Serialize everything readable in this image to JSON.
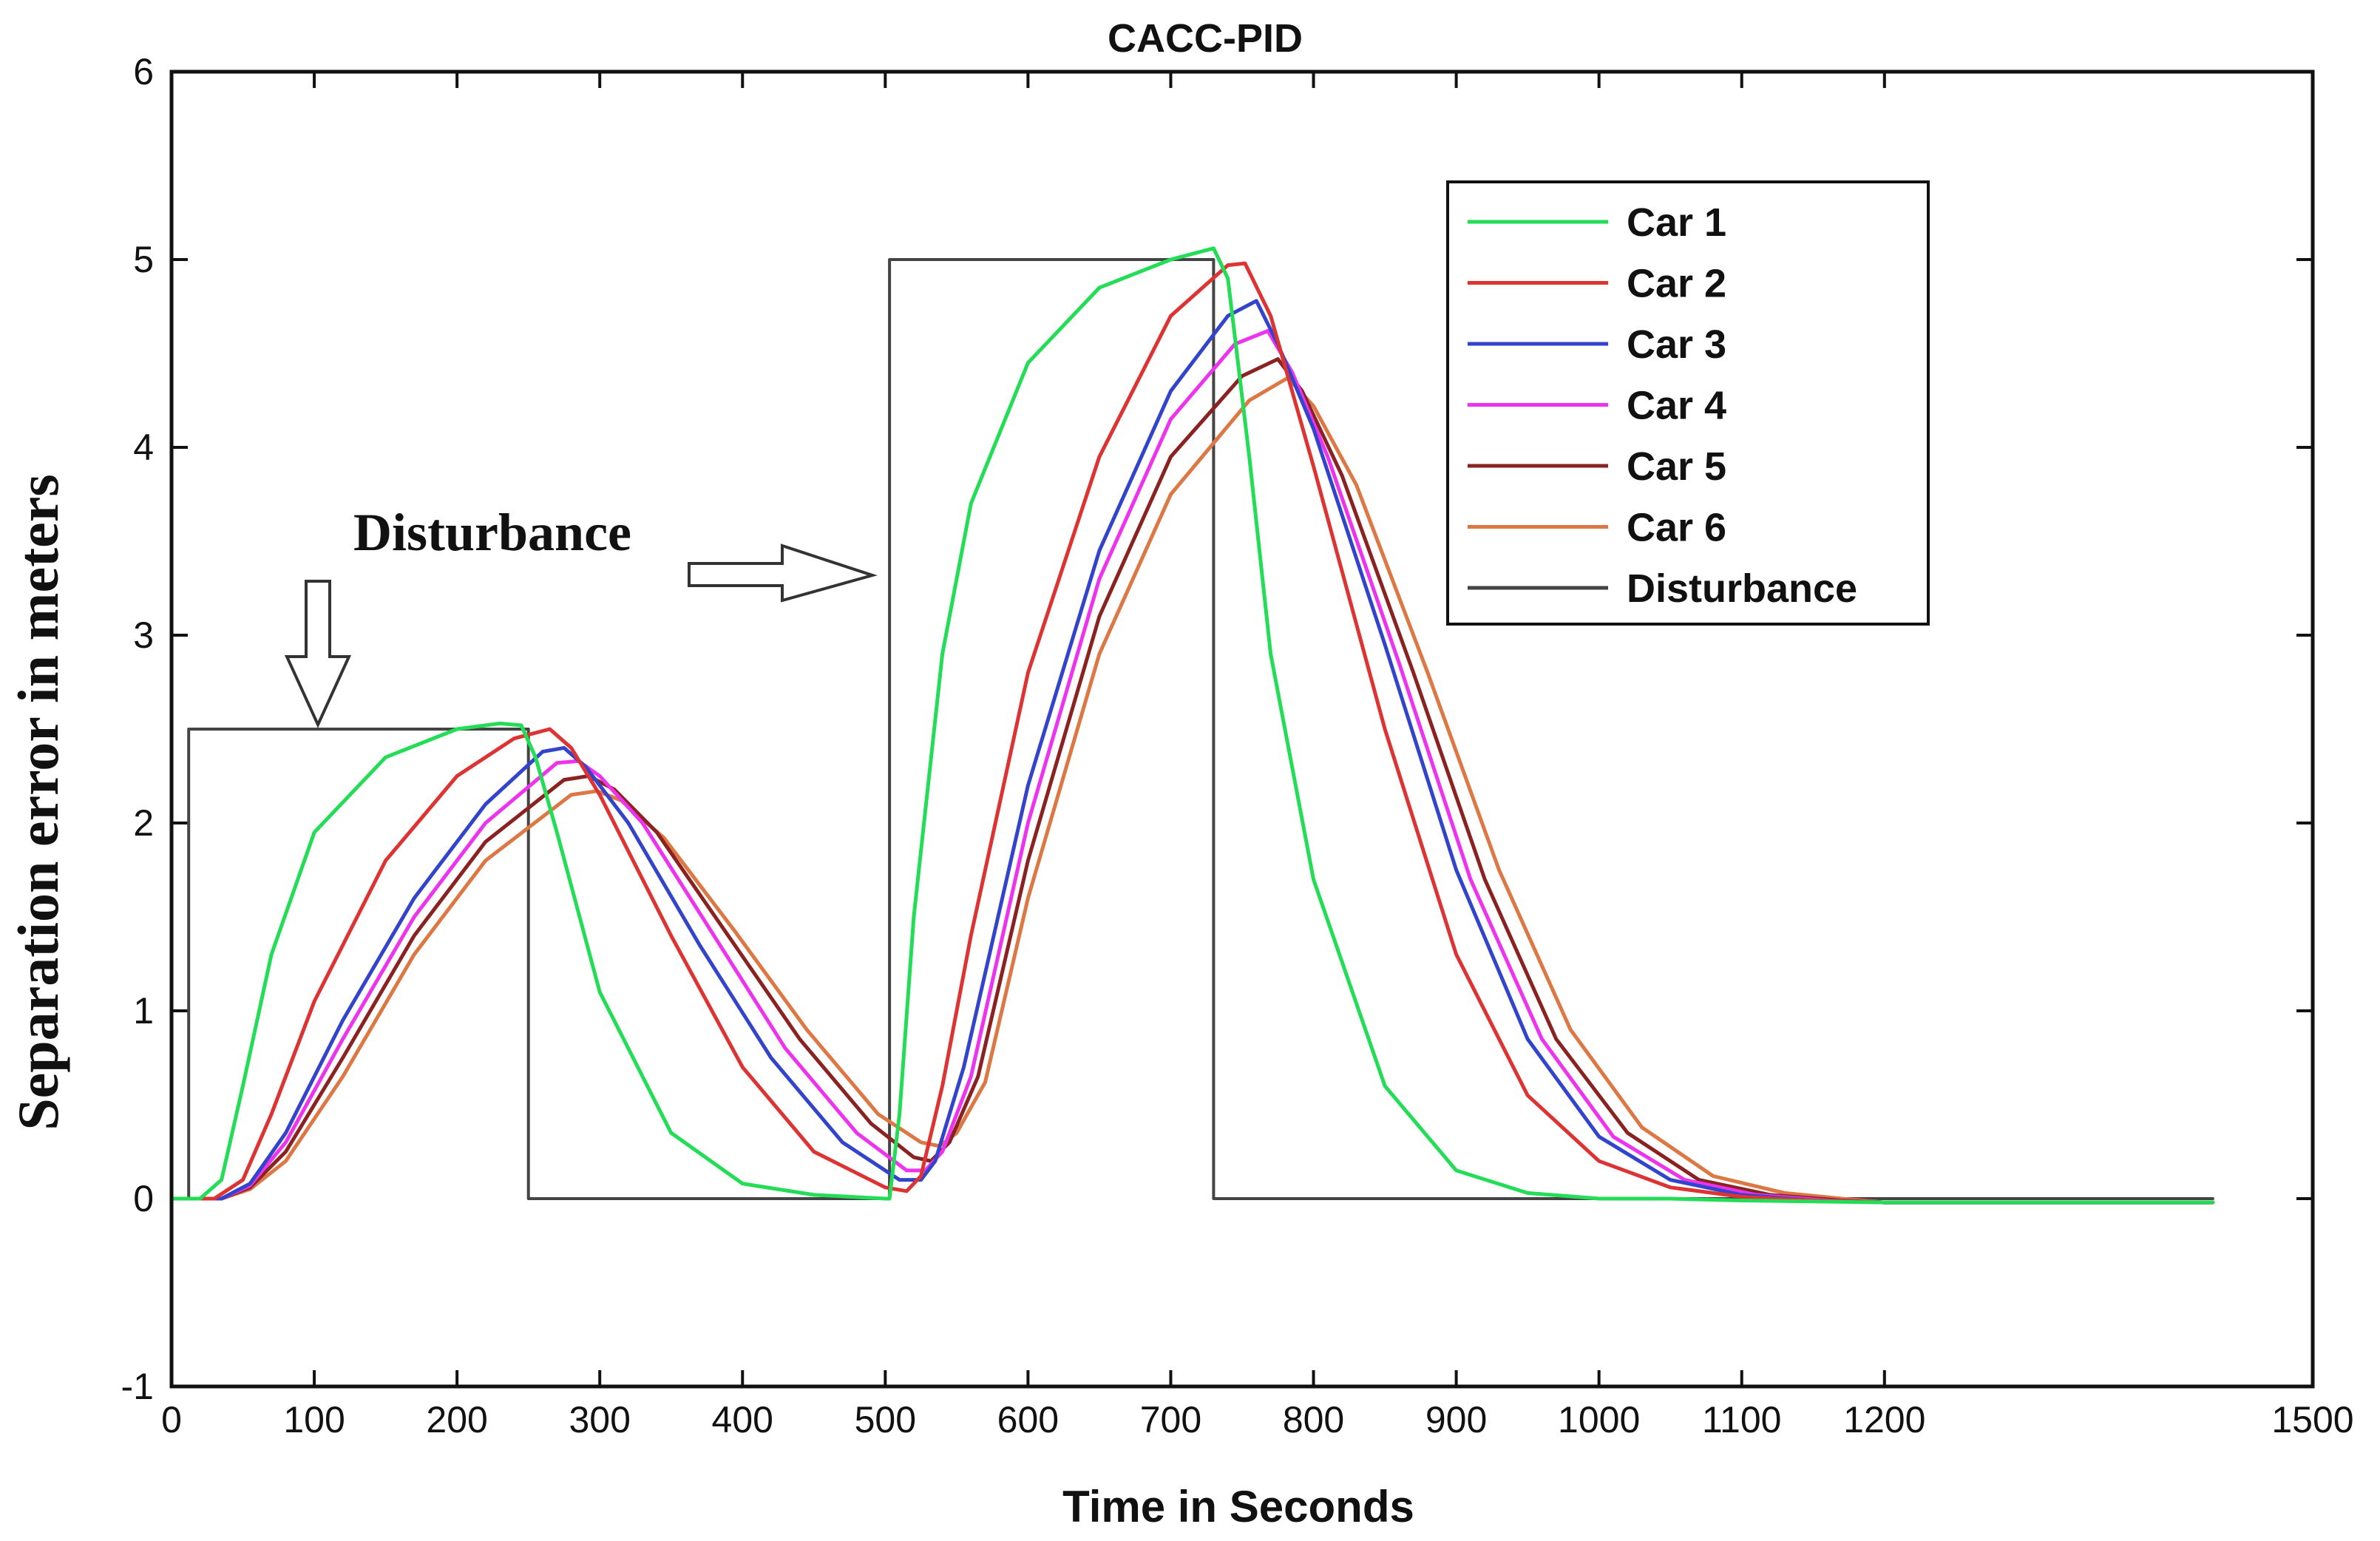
{
  "chart_data": {
    "type": "line",
    "title": "CACC-PID",
    "xlabel": "Time in Seconds",
    "ylabel": "Separation error in meters",
    "xlim": [
      0,
      1500
    ],
    "ylim": [
      -1,
      6
    ],
    "xticks": [
      0,
      100,
      200,
      300,
      400,
      500,
      600,
      700,
      800,
      900,
      1000,
      1100,
      1200,
      1500
    ],
    "yticks": [
      -1,
      0,
      1,
      2,
      3,
      4,
      5,
      6
    ],
    "grid": false,
    "legend_position": "top-right",
    "annotation": {
      "text": "Disturbance"
    },
    "series": [
      {
        "name": "Car 1",
        "color": "#22dd55",
        "x": [
          0,
          20,
          35,
          50,
          70,
          100,
          150,
          200,
          230,
          245,
          255,
          270,
          300,
          350,
          400,
          450,
          500,
          503,
          510,
          520,
          540,
          560,
          600,
          650,
          700,
          730,
          740,
          755,
          770,
          800,
          850,
          900,
          950,
          1000,
          1050,
          1100,
          1200,
          1300,
          1430
        ],
        "y": [
          0,
          0,
          0.1,
          0.6,
          1.3,
          1.95,
          2.35,
          2.5,
          2.53,
          2.52,
          2.35,
          1.95,
          1.1,
          0.35,
          0.08,
          0.02,
          0.0,
          0.0,
          0.45,
          1.5,
          2.9,
          3.7,
          4.45,
          4.85,
          5.0,
          5.06,
          4.9,
          3.95,
          2.9,
          1.7,
          0.6,
          0.15,
          0.03,
          0,
          0,
          -0.01,
          -0.02,
          -0.02,
          -0.02
        ]
      },
      {
        "name": "Car 2",
        "color": "#dd3333",
        "x": [
          0,
          30,
          50,
          70,
          100,
          150,
          200,
          240,
          265,
          280,
          300,
          350,
          400,
          450,
          500,
          515,
          525,
          540,
          560,
          600,
          650,
          700,
          740,
          752,
          770,
          800,
          850,
          900,
          950,
          1000,
          1050,
          1100,
          1150,
          1200,
          1430
        ],
        "y": [
          0,
          0,
          0.1,
          0.45,
          1.05,
          1.8,
          2.25,
          2.45,
          2.5,
          2.4,
          2.15,
          1.4,
          0.7,
          0.25,
          0.06,
          0.04,
          0.12,
          0.6,
          1.4,
          2.8,
          3.95,
          4.7,
          4.97,
          4.98,
          4.7,
          3.9,
          2.5,
          1.3,
          0.55,
          0.2,
          0.06,
          0.01,
          -0.01,
          -0.02,
          -0.02
        ]
      },
      {
        "name": "Car 3",
        "color": "#3344cc",
        "x": [
          0,
          35,
          55,
          80,
          120,
          170,
          220,
          260,
          275,
          290,
          320,
          370,
          420,
          470,
          510,
          525,
          535,
          555,
          600,
          650,
          700,
          740,
          760,
          775,
          800,
          850,
          900,
          950,
          1000,
          1050,
          1100,
          1150,
          1200,
          1430
        ],
        "y": [
          0,
          0,
          0.08,
          0.35,
          0.95,
          1.6,
          2.1,
          2.38,
          2.4,
          2.3,
          2.0,
          1.35,
          0.75,
          0.3,
          0.1,
          0.1,
          0.2,
          0.7,
          2.2,
          3.45,
          4.3,
          4.7,
          4.78,
          4.55,
          4.1,
          2.95,
          1.75,
          0.85,
          0.33,
          0.1,
          0.02,
          -0.01,
          -0.02,
          -0.02
        ]
      },
      {
        "name": "Car 4",
        "color": "#ee33ee",
        "x": [
          0,
          35,
          55,
          80,
          120,
          170,
          220,
          270,
          285,
          300,
          330,
          380,
          430,
          480,
          515,
          528,
          540,
          560,
          600,
          650,
          700,
          745,
          768,
          785,
          810,
          860,
          910,
          960,
          1010,
          1060,
          1110,
          1160,
          1200,
          1430
        ],
        "y": [
          0,
          0,
          0.07,
          0.3,
          0.85,
          1.5,
          2.0,
          2.32,
          2.33,
          2.25,
          2.0,
          1.4,
          0.8,
          0.35,
          0.15,
          0.15,
          0.25,
          0.65,
          2.0,
          3.3,
          4.15,
          4.55,
          4.62,
          4.4,
          3.95,
          2.85,
          1.7,
          0.85,
          0.33,
          0.1,
          0.02,
          -0.01,
          -0.02,
          -0.02
        ]
      },
      {
        "name": "Car 5",
        "color": "#8b2222",
        "x": [
          0,
          35,
          55,
          80,
          120,
          170,
          220,
          275,
          292,
          310,
          340,
          390,
          440,
          490,
          520,
          532,
          545,
          565,
          600,
          650,
          700,
          750,
          775,
          792,
          820,
          870,
          920,
          970,
          1020,
          1070,
          1120,
          1170,
          1200,
          1430
        ],
        "y": [
          0,
          0,
          0.06,
          0.25,
          0.75,
          1.4,
          1.9,
          2.23,
          2.25,
          2.18,
          1.95,
          1.4,
          0.85,
          0.4,
          0.22,
          0.2,
          0.3,
          0.65,
          1.8,
          3.1,
          3.95,
          4.38,
          4.47,
          4.3,
          3.85,
          2.8,
          1.7,
          0.85,
          0.35,
          0.1,
          0.02,
          -0.01,
          -0.02,
          -0.02
        ]
      },
      {
        "name": "Car 6",
        "color": "#dd7744",
        "x": [
          0,
          35,
          55,
          80,
          120,
          170,
          220,
          280,
          298,
          315,
          345,
          395,
          445,
          495,
          525,
          538,
          550,
          570,
          600,
          650,
          700,
          755,
          782,
          800,
          830,
          880,
          930,
          980,
          1030,
          1080,
          1130,
          1170,
          1200,
          1430
        ],
        "y": [
          0,
          0,
          0.05,
          0.2,
          0.65,
          1.3,
          1.8,
          2.15,
          2.17,
          2.12,
          1.92,
          1.42,
          0.9,
          0.45,
          0.3,
          0.28,
          0.35,
          0.62,
          1.6,
          2.9,
          3.75,
          4.25,
          4.37,
          4.22,
          3.8,
          2.8,
          1.75,
          0.9,
          0.38,
          0.12,
          0.03,
          0,
          -0.02,
          -0.02
        ]
      },
      {
        "name": "Disturbance",
        "color": "#444444",
        "x": [
          0,
          12,
          12,
          250,
          250,
          503,
          503,
          730,
          730,
          1430
        ],
        "y": [
          0,
          0,
          2.5,
          2.5,
          0,
          0,
          5,
          5,
          0,
          0
        ]
      }
    ]
  }
}
